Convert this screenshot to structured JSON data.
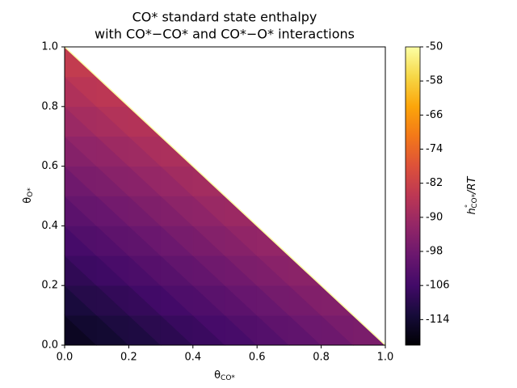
{
  "chart_data": {
    "type": "tricontour",
    "title": [
      "CO* standard state enthalpy",
      "with CO*−CO* and CO*−O* interactions"
    ],
    "x_label": {
      "symbol": "θ",
      "subscript": "CO*"
    },
    "y_label": {
      "symbol": "θ",
      "subscript": "O*"
    },
    "colorbar_label": {
      "symbol": "h",
      "superscript": "°",
      "subscript": "CO*",
      "suffix": "/RT"
    },
    "colormap": [
      "#000004",
      "#160b39",
      "#420a68",
      "#6a176e",
      "#932667",
      "#bc3754",
      "#dd513a",
      "#f37819",
      "#fca50a",
      "#f6d746",
      "#fcffa4"
    ],
    "x": [
      0,
      0.1,
      0.2,
      0.3,
      0.4,
      0.5,
      0.6,
      0.7,
      0.8,
      0.9,
      1
    ],
    "y": [
      0,
      0.1,
      0.2,
      0.3,
      0.4,
      0.5,
      0.6,
      0.7,
      0.8,
      0.9,
      1
    ],
    "z": [
      [
        -118,
        -115.8,
        -113.6,
        -111.4,
        -109.2,
        -107,
        -104.8,
        -102.6,
        -100.4,
        -98.2,
        -96
      ],
      [
        -114.4,
        -112.2,
        -110,
        -107.8,
        -105.6,
        -103.4,
        -101.2,
        -99,
        -96.8,
        -94.6,
        null
      ],
      [
        -110.8,
        -108.6,
        -106.4,
        -104.2,
        -102,
        -99.8,
        -97.6,
        -95.4,
        -93.2,
        null,
        null
      ],
      [
        -107.2,
        -105,
        -102.8,
        -100.6,
        -98.4,
        -96.2,
        -94,
        -91.8,
        null,
        null,
        null
      ],
      [
        -103.6,
        -101.4,
        -99.2,
        -97,
        -94.8,
        -92.6,
        -90.4,
        null,
        null,
        null,
        null
      ],
      [
        -100,
        -97.8,
        -95.6,
        -93.4,
        -91.2,
        -89,
        null,
        null,
        null,
        null,
        null
      ],
      [
        -96.4,
        -94.2,
        -92,
        -89.8,
        -87.6,
        null,
        null,
        null,
        null,
        null,
        null
      ],
      [
        -92.8,
        -90.6,
        -88.4,
        -86.2,
        null,
        null,
        null,
        null,
        null,
        null,
        null
      ],
      [
        -89.2,
        -87,
        -84.8,
        null,
        null,
        null,
        null,
        null,
        null,
        null,
        null
      ],
      [
        -85.6,
        -83.4,
        null,
        null,
        null,
        null,
        null,
        null,
        null,
        null,
        null
      ],
      [
        -82,
        null,
        null,
        null,
        null,
        null,
        null,
        null,
        null,
        null,
        null
      ]
    ],
    "xlim": [
      0,
      1
    ],
    "ylim": [
      0,
      1
    ],
    "clim": [
      -120,
      -50
    ],
    "xticks": [
      {
        "value": 0,
        "label": "0.0"
      },
      {
        "value": 0.2,
        "label": "0.2"
      },
      {
        "value": 0.4,
        "label": "0.4"
      },
      {
        "value": 0.6,
        "label": "0.6"
      },
      {
        "value": 0.8,
        "label": "0.8"
      },
      {
        "value": 1,
        "label": "1.0"
      }
    ],
    "yticks": [
      {
        "value": 0,
        "label": "0.0"
      },
      {
        "value": 0.2,
        "label": "0.2"
      },
      {
        "value": 0.4,
        "label": "0.4"
      },
      {
        "value": 0.6,
        "label": "0.6"
      },
      {
        "value": 0.8,
        "label": "0.8"
      },
      {
        "value": 1,
        "label": "1.0"
      }
    ],
    "cticks": [
      -50,
      -58,
      -66,
      -74,
      -82,
      -90,
      -98,
      -106,
      -114
    ]
  }
}
